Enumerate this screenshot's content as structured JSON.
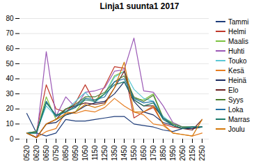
{
  "chart_data": {
    "type": "line",
    "title": "Linja1 suunta1 2017",
    "categories": [
      "0520",
      "0620",
      "0650",
      "0750",
      "0850",
      "0950",
      "1050",
      "1150",
      "1250",
      "1350",
      "1450",
      "1550",
      "1650",
      "1750",
      "1850",
      "1950",
      "2050",
      "2150",
      "2250"
    ],
    "series": [
      {
        "name": "Tammi",
        "color": "#1f3d7a",
        "values": [
          17,
          4,
          2,
          4,
          13,
          12,
          12,
          13,
          14,
          15,
          15,
          10,
          9,
          8,
          6,
          5,
          7,
          7,
          8
        ]
      },
      {
        "name": "Helmi",
        "color": "#c0392b",
        "values": [
          4,
          5,
          36,
          20,
          18,
          24,
          36,
          24,
          35,
          48,
          47,
          14,
          18,
          21,
          10,
          8,
          7,
          8,
          8
        ]
      },
      {
        "name": "Maalis",
        "color": "#7dc242",
        "values": [
          4,
          4,
          28,
          13,
          16,
          18,
          27,
          26,
          30,
          42,
          45,
          27,
          26,
          30,
          14,
          11,
          8,
          8,
          8
        ]
      },
      {
        "name": "Huhti",
        "color": "#9b59b6",
        "values": [
          4,
          1,
          58,
          15,
          28,
          21,
          31,
          32,
          34,
          45,
          46,
          67,
          32,
          31,
          22,
          11,
          8,
          8,
          8
        ]
      },
      {
        "name": "Touko",
        "color": "#5bc8d5",
        "values": [
          4,
          5,
          22,
          15,
          19,
          25,
          31,
          24,
          30,
          41,
          45,
          33,
          27,
          25,
          15,
          10,
          8,
          8,
          8
        ]
      },
      {
        "name": "Kesä",
        "color": "#e67e22",
        "values": [
          4,
          1,
          5,
          7,
          18,
          17,
          19,
          18,
          21,
          27,
          22,
          18,
          16,
          10,
          9,
          4,
          3,
          2,
          4
        ]
      },
      {
        "name": "Heinä",
        "color": "#1a2a5e",
        "values": [
          4,
          1,
          10,
          11,
          16,
          18,
          22,
          24,
          25,
          30,
          38,
          25,
          18,
          16,
          11,
          9,
          7,
          7,
          8
        ]
      },
      {
        "name": "Elo",
        "color": "#6b2020",
        "values": [
          4,
          1,
          10,
          13,
          20,
          22,
          24,
          23,
          24,
          34,
          45,
          26,
          22,
          22,
          14,
          9,
          7,
          6,
          13
        ]
      },
      {
        "name": "Syys",
        "color": "#4a7c2f",
        "values": [
          4,
          5,
          25,
          15,
          20,
          23,
          28,
          28,
          31,
          38,
          42,
          28,
          25,
          29,
          14,
          10,
          8,
          8,
          8
        ]
      },
      {
        "name": "Loka",
        "color": "#2471a3",
        "values": [
          4,
          4,
          25,
          15,
          18,
          22,
          27,
          26,
          28,
          38,
          40,
          27,
          24,
          25,
          14,
          9,
          7,
          8,
          8
        ]
      },
      {
        "name": "Marras",
        "color": "#1a7a6a",
        "values": [
          4,
          4,
          24,
          16,
          18,
          21,
          26,
          25,
          30,
          36,
          38,
          26,
          22,
          24,
          13,
          9,
          7,
          8,
          8
        ]
      },
      {
        "name": "Joulu",
        "color": "#d4780a",
        "values": [
          4,
          1,
          10,
          13,
          17,
          18,
          23,
          21,
          23,
          34,
          51,
          18,
          18,
          22,
          10,
          4,
          3,
          2,
          13
        ]
      }
    ],
    "ylim": [
      0,
      80
    ],
    "yticks": [
      0,
      10,
      20,
      30,
      40,
      50,
      60,
      70,
      80
    ],
    "grid": true,
    "legend": "right"
  }
}
